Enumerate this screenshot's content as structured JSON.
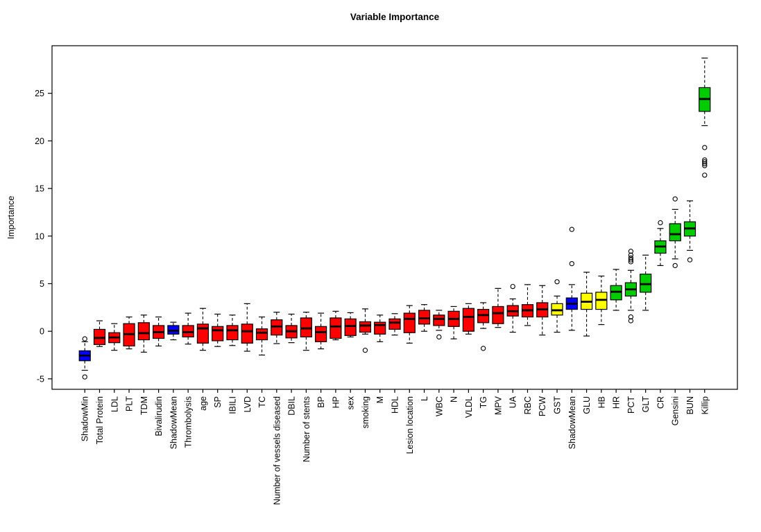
{
  "page": {
    "background": "#ffffff"
  },
  "chart_data": {
    "type": "boxplot",
    "title": "Variable Importance",
    "xlabel": "",
    "ylabel": "Importance",
    "ylim": [
      -6.1,
      30.0
    ],
    "yticks": [
      -5,
      0,
      5,
      10,
      15,
      20,
      25
    ],
    "grid": false,
    "legend": null,
    "colors": {
      "red": "#FF0000",
      "yellow": "#FFFF00",
      "green": "#00CD00",
      "blue": "#0000FF"
    },
    "boxes": [
      {
        "label": "ShadowMin",
        "color": "blue",
        "whislo": -4.1,
        "q1": -3.1,
        "med": -2.55,
        "q3": -2.05,
        "whishi": -1.1,
        "fliers": [
          -0.8,
          -4.8
        ]
      },
      {
        "label": "Total Protein",
        "color": "red",
        "whislo": -1.6,
        "q1": -1.4,
        "med": -0.7,
        "q3": 0.2,
        "whishi": 1.1,
        "fliers": []
      },
      {
        "label": "LDL",
        "color": "red",
        "whislo": -2.0,
        "q1": -1.2,
        "med": -0.65,
        "q3": -0.15,
        "whishi": 0.8,
        "fliers": []
      },
      {
        "label": "PLT",
        "color": "red",
        "whislo": -1.85,
        "q1": -1.55,
        "med": -0.3,
        "q3": 0.8,
        "whishi": 1.5,
        "fliers": []
      },
      {
        "label": "TDM",
        "color": "red",
        "whislo": -2.2,
        "q1": -0.9,
        "med": -0.2,
        "q3": 0.9,
        "whishi": 1.7,
        "fliers": []
      },
      {
        "label": "Bivalirudin",
        "color": "red",
        "whislo": -1.55,
        "q1": -0.75,
        "med": -0.1,
        "q3": 0.6,
        "whishi": 1.5,
        "fliers": []
      },
      {
        "label": "ShadowMean",
        "color": "blue",
        "whislo": -0.9,
        "q1": -0.3,
        "med": 0.05,
        "q3": 0.6,
        "whishi": 0.95,
        "fliers": []
      },
      {
        "label": "Thrombolysis",
        "color": "red",
        "whislo": -1.35,
        "q1": -0.6,
        "med": -0.1,
        "q3": 0.6,
        "whishi": 1.9,
        "fliers": []
      },
      {
        "label": "age",
        "color": "red",
        "whislo": -2.0,
        "q1": -1.25,
        "med": 0.3,
        "q3": 0.75,
        "whishi": 2.4,
        "fliers": []
      },
      {
        "label": "SP",
        "color": "red",
        "whislo": -1.6,
        "q1": -1.0,
        "med": 0.1,
        "q3": 0.5,
        "whishi": 1.8,
        "fliers": []
      },
      {
        "label": "IBILI",
        "color": "red",
        "whislo": -1.5,
        "q1": -0.9,
        "med": 0.1,
        "q3": 0.6,
        "whishi": 1.7,
        "fliers": []
      },
      {
        "label": "LVD",
        "color": "red",
        "whislo": -2.1,
        "q1": -1.25,
        "med": 0.0,
        "q3": 0.75,
        "whishi": 2.9,
        "fliers": []
      },
      {
        "label": "TC",
        "color": "red",
        "whislo": -2.5,
        "q1": -0.9,
        "med": -0.15,
        "q3": 0.25,
        "whishi": 1.5,
        "fliers": []
      },
      {
        "label": "Number of vessels diseased",
        "color": "red",
        "whislo": -1.3,
        "q1": -0.4,
        "med": 0.5,
        "q3": 1.2,
        "whishi": 2.0,
        "fliers": []
      },
      {
        "label": "DBIL",
        "color": "red",
        "whislo": -1.2,
        "q1": -0.7,
        "med": 0.0,
        "q3": 0.6,
        "whishi": 1.8,
        "fliers": []
      },
      {
        "label": "Number of stents",
        "color": "red",
        "whislo": -2.0,
        "q1": -0.6,
        "med": 0.3,
        "q3": 1.4,
        "whishi": 2.0,
        "fliers": []
      },
      {
        "label": "BP",
        "color": "red",
        "whislo": -1.85,
        "q1": -1.1,
        "med": -0.1,
        "q3": 0.5,
        "whishi": 1.9,
        "fliers": []
      },
      {
        "label": "HP",
        "color": "red",
        "whislo": -0.9,
        "q1": -0.75,
        "med": 0.5,
        "q3": 1.4,
        "whishi": 2.1,
        "fliers": []
      },
      {
        "label": "sex",
        "color": "red",
        "whislo": -0.6,
        "q1": -0.45,
        "med": 0.55,
        "q3": 1.3,
        "whishi": 1.95,
        "fliers": []
      },
      {
        "label": "smoking",
        "color": "red",
        "whislo": -0.3,
        "q1": -0.1,
        "med": 0.6,
        "q3": 1.0,
        "whishi": 2.35,
        "fliers": [
          -2.0
        ]
      },
      {
        "label": "M",
        "color": "red",
        "whislo": -1.1,
        "q1": -0.3,
        "med": 0.65,
        "q3": 0.95,
        "whishi": 1.7,
        "fliers": []
      },
      {
        "label": "HDL",
        "color": "red",
        "whislo": -0.4,
        "q1": 0.2,
        "med": 0.9,
        "q3": 1.3,
        "whishi": 1.85,
        "fliers": []
      },
      {
        "label": "Lesion location",
        "color": "red",
        "whislo": -1.25,
        "q1": -0.15,
        "med": 1.3,
        "q3": 1.9,
        "whishi": 2.7,
        "fliers": []
      },
      {
        "label": "L",
        "color": "red",
        "whislo": 0.0,
        "q1": 0.75,
        "med": 1.35,
        "q3": 2.2,
        "whishi": 2.8,
        "fliers": []
      },
      {
        "label": "WBC",
        "color": "red",
        "whislo": 0.1,
        "q1": 0.6,
        "med": 1.3,
        "q3": 1.7,
        "whishi": 2.2,
        "fliers": [
          -0.6
        ]
      },
      {
        "label": "N",
        "color": "red",
        "whislo": -0.8,
        "q1": 0.5,
        "med": 1.3,
        "q3": 2.1,
        "whishi": 2.6,
        "fliers": []
      },
      {
        "label": "VLDL",
        "color": "red",
        "whislo": -0.3,
        "q1": 0.0,
        "med": 1.5,
        "q3": 2.4,
        "whishi": 2.9,
        "fliers": []
      },
      {
        "label": "TG",
        "color": "red",
        "whislo": 0.3,
        "q1": 0.9,
        "med": 1.7,
        "q3": 2.3,
        "whishi": 3.0,
        "fliers": [
          -1.8
        ]
      },
      {
        "label": "MPV",
        "color": "red",
        "whislo": 0.4,
        "q1": 0.8,
        "med": 1.9,
        "q3": 2.6,
        "whishi": 4.5,
        "fliers": []
      },
      {
        "label": "UA",
        "color": "red",
        "whislo": -0.1,
        "q1": 1.6,
        "med": 2.1,
        "q3": 2.7,
        "whishi": 3.4,
        "fliers": [
          4.7
        ]
      },
      {
        "label": "RBC",
        "color": "red",
        "whislo": 0.6,
        "q1": 1.5,
        "med": 2.2,
        "q3": 2.8,
        "whishi": 4.9,
        "fliers": []
      },
      {
        "label": "PCW",
        "color": "red",
        "whislo": -0.4,
        "q1": 1.5,
        "med": 2.3,
        "q3": 3.0,
        "whishi": 4.8,
        "fliers": []
      },
      {
        "label": "GST",
        "color": "yellow",
        "whislo": -0.1,
        "q1": 1.7,
        "med": 2.2,
        "q3": 2.9,
        "whishi": 3.7,
        "fliers": [
          5.2
        ]
      },
      {
        "label": "ShadowMean",
        "color": "blue",
        "whislo": 0.1,
        "q1": 2.3,
        "med": 2.9,
        "q3": 3.5,
        "whishi": 4.9,
        "fliers": [
          10.7,
          7.1
        ]
      },
      {
        "label": "GLU",
        "color": "yellow",
        "whislo": -0.5,
        "q1": 2.3,
        "med": 3.1,
        "q3": 4.0,
        "whishi": 6.2,
        "fliers": []
      },
      {
        "label": "HB",
        "color": "yellow",
        "whislo": 0.7,
        "q1": 2.3,
        "med": 3.3,
        "q3": 4.1,
        "whishi": 5.8,
        "fliers": []
      },
      {
        "label": "HR",
        "color": "green",
        "whislo": 2.2,
        "q1": 3.3,
        "med": 4.15,
        "q3": 4.8,
        "whishi": 6.5,
        "fliers": []
      },
      {
        "label": "PCT",
        "color": "green",
        "whislo": 2.2,
        "q1": 3.7,
        "med": 4.4,
        "q3": 5.1,
        "whishi": 6.4,
        "fliers": [
          8.4,
          8.0,
          7.7,
          7.5,
          7.3,
          1.5,
          1.1
        ]
      },
      {
        "label": "GLT",
        "color": "green",
        "whislo": 2.2,
        "q1": 4.1,
        "med": 4.95,
        "q3": 6.0,
        "whishi": 8.0,
        "fliers": []
      },
      {
        "label": "CR",
        "color": "green",
        "whislo": 6.9,
        "q1": 8.2,
        "med": 8.9,
        "q3": 9.5,
        "whishi": 10.8,
        "fliers": [
          11.4
        ]
      },
      {
        "label": "Gensini",
        "color": "green",
        "whislo": 7.6,
        "q1": 9.5,
        "med": 10.2,
        "q3": 11.3,
        "whishi": 12.8,
        "fliers": [
          13.9,
          6.9
        ]
      },
      {
        "label": "BUN",
        "color": "green",
        "whislo": 8.5,
        "q1": 10.0,
        "med": 10.8,
        "q3": 11.5,
        "whishi": 13.7,
        "fliers": [
          7.5
        ]
      },
      {
        "label": "Killip",
        "color": "green",
        "whislo": 21.6,
        "q1": 23.1,
        "med": 24.4,
        "q3": 25.6,
        "whishi": 28.7,
        "fliers": [
          19.3,
          18.0,
          17.8,
          17.6,
          17.4,
          16.4
        ]
      }
    ]
  }
}
